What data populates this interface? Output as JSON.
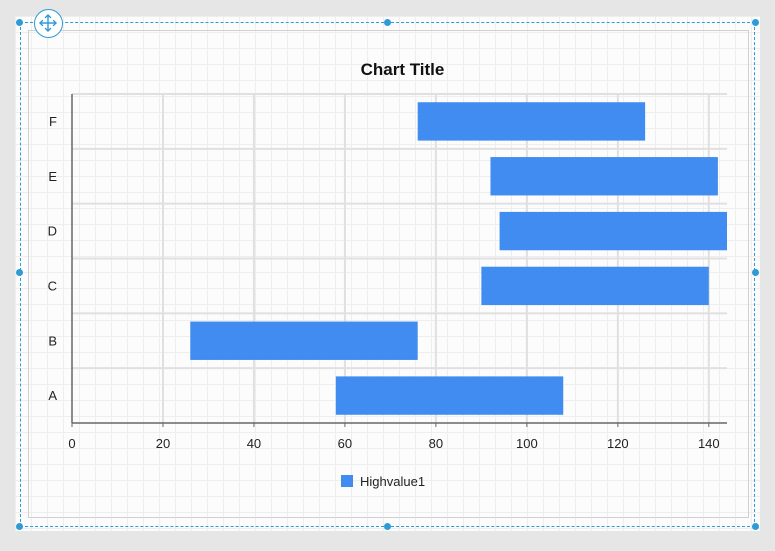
{
  "chart_data": {
    "type": "bar",
    "orientation": "horizontal",
    "title": "Chart Title",
    "categories": [
      "A",
      "B",
      "C",
      "D",
      "E",
      "F"
    ],
    "x_ticks": [
      0,
      20,
      40,
      60,
      80,
      100,
      120,
      140
    ],
    "xlim": [
      0,
      144
    ],
    "series": [
      {
        "name": "Highvalue1",
        "ranges": [
          [
            58,
            108
          ],
          [
            26,
            76
          ],
          [
            90,
            140
          ],
          [
            94,
            144
          ],
          [
            92,
            142
          ],
          [
            76,
            126
          ]
        ]
      }
    ],
    "legend_position": "bottom",
    "grid": true
  },
  "colors": {
    "bar": "#418cf0",
    "selection": "#2f9bd6",
    "grid": "#e0e0e0",
    "axis": "#666666"
  },
  "icons": {
    "move_handle": "move-arrows-icon"
  }
}
